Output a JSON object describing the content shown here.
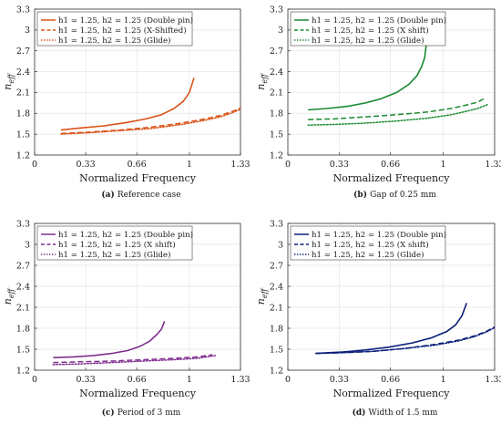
{
  "figure": {
    "panels": [
      {
        "label": "(a)",
        "caption": "Reference case",
        "chart_data": {
          "type": "line",
          "xlabel": "Normalized Frequency",
          "ylabel": "n_eff",
          "xlim": [
            0,
            1.33
          ],
          "ylim": [
            1.2,
            3.3
          ],
          "xticks": [
            "0",
            "0.33",
            "0.66",
            "1",
            "1.33"
          ],
          "yticks": [
            "1.2",
            "1.5",
            "1.8",
            "2.1",
            "2.4",
            "2.7",
            "3",
            "3.3"
          ],
          "grid": true,
          "legend_position": "top-left",
          "color": "#d95319",
          "series": [
            {
              "name": "h1 = 1.25, h2 = 1.25 (Double pin)",
              "style": "solid",
              "x": [
                0.17,
                0.3,
                0.45,
                0.6,
                0.72,
                0.82,
                0.9,
                0.96,
                1.0,
                1.03
              ],
              "y": [
                1.56,
                1.59,
                1.62,
                1.67,
                1.72,
                1.78,
                1.87,
                1.97,
                2.1,
                2.31
              ]
            },
            {
              "name": "h1 = 1.25, h2 = 1.25 (X-Shifted)",
              "style": "dashed",
              "x": [
                0.17,
                0.35,
                0.55,
                0.75,
                0.95,
                1.1,
                1.2,
                1.28,
                1.33
              ],
              "y": [
                1.51,
                1.53,
                1.56,
                1.6,
                1.66,
                1.72,
                1.77,
                1.83,
                1.88
              ]
            },
            {
              "name": "h1 = 1.25, h2 = 1.25 (Glide)",
              "style": "dotted",
              "x": [
                0.17,
                0.35,
                0.55,
                0.75,
                0.95,
                1.1,
                1.2,
                1.28,
                1.33
              ],
              "y": [
                1.5,
                1.52,
                1.55,
                1.58,
                1.64,
                1.7,
                1.75,
                1.81,
                1.86
              ]
            }
          ]
        }
      },
      {
        "label": "(b)",
        "caption": "Gap of 0.25 mm",
        "chart_data": {
          "type": "line",
          "xlabel": "Normalized Frequency",
          "ylabel": "n_eff",
          "xlim": [
            0,
            1.33
          ],
          "ylim": [
            1.2,
            3.3
          ],
          "xticks": [
            "0",
            "0.33",
            "0.66",
            "1",
            "1.33"
          ],
          "yticks": [
            "1.2",
            "1.5",
            "1.8",
            "2.1",
            "2.4",
            "2.7",
            "3",
            "3.3"
          ],
          "grid": true,
          "legend_position": "top-left",
          "color": "#1a8a32",
          "series": [
            {
              "name": "h1 = 1.25, h2 = 1.25 (Double pin)",
              "style": "solid",
              "x": [
                0.13,
                0.25,
                0.38,
                0.5,
                0.6,
                0.7,
                0.78,
                0.83,
                0.86,
                0.88,
                0.89
              ],
              "y": [
                1.85,
                1.87,
                1.9,
                1.95,
                2.01,
                2.1,
                2.22,
                2.34,
                2.47,
                2.6,
                2.78
              ]
            },
            {
              "name": "h1 = 1.25, h2 = 1.25 (X shift)",
              "style": "dashed",
              "x": [
                0.13,
                0.3,
                0.5,
                0.7,
                0.9,
                1.05,
                1.15,
                1.22,
                1.27
              ],
              "y": [
                1.71,
                1.72,
                1.75,
                1.78,
                1.82,
                1.87,
                1.92,
                1.96,
                2.02
              ]
            },
            {
              "name": "h1 = 1.25, h2 = 1.25 (Glide)",
              "style": "dotted",
              "x": [
                0.13,
                0.3,
                0.5,
                0.7,
                0.9,
                1.05,
                1.15,
                1.22,
                1.29
              ],
              "y": [
                1.63,
                1.64,
                1.66,
                1.69,
                1.73,
                1.78,
                1.83,
                1.87,
                1.93
              ]
            }
          ]
        }
      },
      {
        "label": "(c)",
        "caption": "Period of 3 mm",
        "chart_data": {
          "type": "line",
          "xlabel": "Normalized Frequency",
          "ylabel": "n_eff",
          "xlim": [
            0,
            1.33
          ],
          "ylim": [
            1.2,
            3.3
          ],
          "xticks": [
            "0",
            "0.33",
            "0.66",
            "1",
            "1.33"
          ],
          "yticks": [
            "1.2",
            "1.5",
            "1.8",
            "2.1",
            "2.4",
            "2.7",
            "3",
            "3.3"
          ],
          "grid": true,
          "legend_position": "top-left",
          "color": "#7e2f8e",
          "series": [
            {
              "name": "h1 = 1.25, h2 = 1.25 (Double pin)",
              "style": "solid",
              "x": [
                0.12,
                0.25,
                0.38,
                0.5,
                0.6,
                0.68,
                0.74,
                0.79,
                0.82,
                0.84
              ],
              "y": [
                1.38,
                1.39,
                1.41,
                1.44,
                1.48,
                1.54,
                1.61,
                1.71,
                1.79,
                1.9
              ]
            },
            {
              "name": "h1 = 1.25, h2 = 1.25 (X shift)",
              "style": "dashed",
              "x": [
                0.12,
                0.3,
                0.5,
                0.7,
                0.9,
                1.05,
                1.15
              ],
              "y": [
                1.31,
                1.32,
                1.33,
                1.35,
                1.37,
                1.39,
                1.42
              ]
            },
            {
              "name": "h1 = 1.25, h2 = 1.25 (Glide)",
              "style": "dotted",
              "x": [
                0.12,
                0.3,
                0.5,
                0.7,
                0.9,
                1.05,
                1.17
              ],
              "y": [
                1.28,
                1.29,
                1.31,
                1.33,
                1.35,
                1.37,
                1.41
              ]
            }
          ]
        }
      },
      {
        "label": "(d)",
        "caption": "Width of 1.5 mm",
        "chart_data": {
          "type": "line",
          "xlabel": "Normalized Frequency",
          "ylabel": "n_eff",
          "xlim": [
            0,
            1.33
          ],
          "ylim": [
            1.2,
            3.3
          ],
          "xticks": [
            "0",
            "0.33",
            "0.66",
            "1",
            "1.33"
          ],
          "yticks": [
            "1.2",
            "1.5",
            "1.8",
            "2.1",
            "2.4",
            "2.7",
            "3",
            "3.3"
          ],
          "grid": true,
          "legend_position": "top-left",
          "color": "#0b1f7a",
          "series": [
            {
              "name": "h1 = 1.25, h2 = 1.25 (Double pin)",
              "style": "solid",
              "x": [
                0.18,
                0.35,
                0.5,
                0.65,
                0.8,
                0.92,
                1.02,
                1.08,
                1.12,
                1.15
              ],
              "y": [
                1.44,
                1.46,
                1.49,
                1.53,
                1.59,
                1.66,
                1.75,
                1.85,
                1.98,
                2.16
              ]
            },
            {
              "name": "h1 = 1.25, h2 = 1.25 (X shift)",
              "style": "dashed",
              "x": [
                0.18,
                0.35,
                0.55,
                0.75,
                0.95,
                1.1,
                1.2,
                1.28,
                1.33
              ],
              "y": [
                1.44,
                1.45,
                1.47,
                1.51,
                1.57,
                1.63,
                1.69,
                1.76,
                1.82
              ]
            },
            {
              "name": "h1 = 1.25, h2 = 1.25 (Glide)",
              "style": "dotted",
              "x": [
                0.18,
                0.35,
                0.55,
                0.75,
                0.95,
                1.1,
                1.2,
                1.28,
                1.33
              ],
              "y": [
                1.44,
                1.45,
                1.47,
                1.51,
                1.56,
                1.62,
                1.68,
                1.75,
                1.81
              ]
            }
          ]
        }
      }
    ]
  }
}
